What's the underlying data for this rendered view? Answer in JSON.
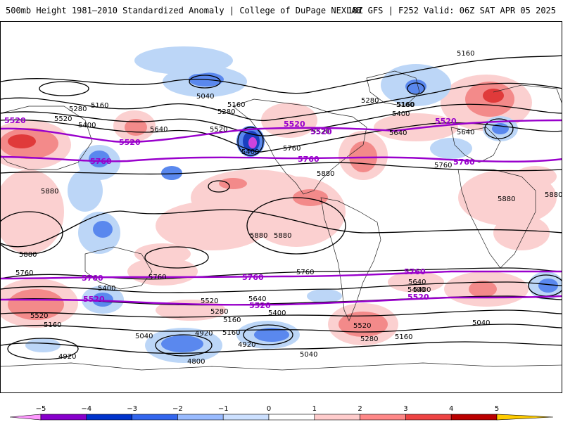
{
  "header": {
    "left": "500mb Height 1981–2010 Standardized Anomaly | College of DuPage NEXLAB",
    "right": "18Z GFS | F252 Valid: 06Z SAT APR 05 2025"
  },
  "contour_labels": {
    "black": [
      "5160",
      "5040",
      "5280",
      "5160",
      "5280",
      "5160",
      "5400",
      "5520",
      "5640",
      "5520",
      "5400",
      "5280",
      "5160",
      "5400",
      "5640",
      "5520",
      "5640",
      "5760",
      "5880",
      "5880",
      "5880",
      "5880",
      "5880",
      "5880",
      "5760",
      "5880",
      "5760",
      "5400",
      "5520",
      "5160",
      "4920",
      "5040",
      "4920",
      "4800",
      "4920",
      "5040",
      "5160",
      "5280",
      "5400",
      "5520",
      "5640",
      "5760",
      "5640",
      "5400",
      "5160",
      "5280",
      "5520",
      "5040",
      "5160",
      "5760",
      "5400",
      "5160"
    ],
    "purple": [
      "5520",
      "5520",
      "5760",
      "5760",
      "5760",
      "5760",
      "5760",
      "5520",
      "5520",
      "5520",
      "5520",
      "5520",
      "5520",
      "5760"
    ]
  },
  "colorbar": {
    "ticks": [
      "−5",
      "−4",
      "−3",
      "−2",
      "−1",
      "0",
      "1",
      "2",
      "3",
      "4",
      "5"
    ],
    "colors": [
      "#ff99ff",
      "#8800cc",
      "#0033cc",
      "#3366ee",
      "#99bbff",
      "#cce0ff",
      "#ffffff",
      "#ffcccc",
      "#ff8888",
      "#ee4444",
      "#bb0000",
      "#ff9900",
      "#ffcc00"
    ]
  },
  "legend": {
    "anomaly_colors": {
      "strong_negative": "#6a0dad",
      "negative": "#3366ee",
      "weak_negative": "#bcd6f7",
      "weak_positive": "#fbd0d0",
      "positive": "#f38a8a",
      "strong_positive": "#e03a3a",
      "purple_contour": "#9900cc"
    }
  }
}
